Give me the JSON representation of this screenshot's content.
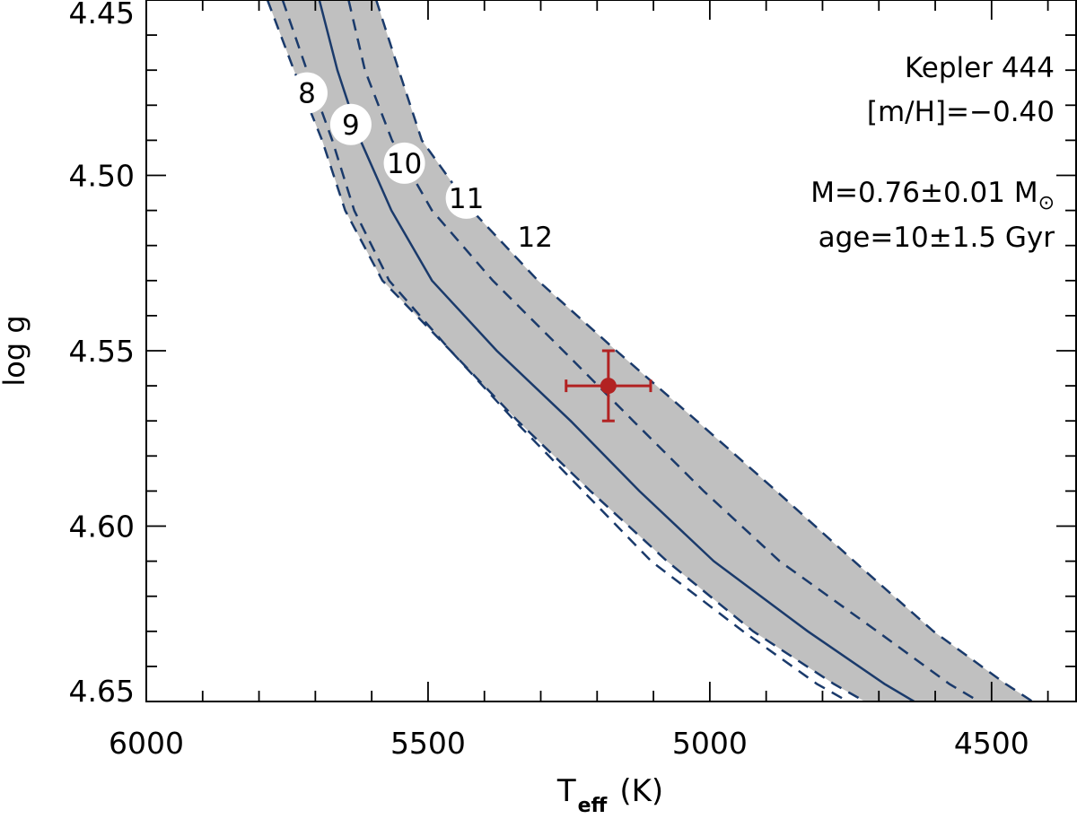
{
  "chart_data": {
    "type": "line",
    "xlabel": "T",
    "xlabel_sub": "eff",
    "xlabel_unit": "(K)",
    "ylabel": "log g",
    "xlim": [
      6000,
      4350
    ],
    "ylim": [
      4.45,
      4.65
    ],
    "x_ticks": [
      6000,
      5500,
      5000,
      4500
    ],
    "y_ticks": [
      4.45,
      4.5,
      4.55,
      4.6,
      4.65
    ],
    "x_minor_step": 100,
    "y_minor_step": 0.01,
    "grid": false,
    "annotations": {
      "star": "Kepler 444",
      "metallicity": "[m/H]=−0.40",
      "mass_prefix": "M=0.76±0.01 M",
      "mass_symbol": "⊙",
      "age": "age=10±1.5 Gyr"
    },
    "age_markers": [
      {
        "label": "8",
        "x": 5715,
        "y": 4.4765
      },
      {
        "label": "9",
        "x": 5637,
        "y": 4.4855
      },
      {
        "label": "10",
        "x": 5542,
        "y": 4.4965
      },
      {
        "label": "11",
        "x": 5432,
        "y": 4.5065
      },
      {
        "label": "12",
        "x": 5310,
        "y": 4.5175
      }
    ],
    "series": [
      {
        "role": "central",
        "color": "#1a3a6b",
        "style": "solid",
        "points": [
          [
            5693,
            4.45
          ],
          [
            5661,
            4.47
          ],
          [
            5620,
            4.49
          ],
          [
            5565,
            4.51
          ],
          [
            5493,
            4.53
          ],
          [
            5378,
            4.55
          ],
          [
            5247,
            4.57
          ],
          [
            5125,
            4.59
          ],
          [
            4993,
            4.61
          ],
          [
            4826,
            4.63
          ],
          [
            4690,
            4.645
          ],
          [
            4585,
            4.655
          ],
          [
            4500,
            4.665
          ]
        ]
      },
      {
        "role": "inner_upper",
        "color": "#1a3a6b",
        "style": "dashed",
        "points": [
          [
            5641,
            4.45
          ],
          [
            5612,
            4.47
          ],
          [
            5564,
            4.49
          ],
          [
            5493,
            4.51
          ],
          [
            5385,
            4.53
          ],
          [
            5260,
            4.55
          ],
          [
            5136,
            4.57
          ],
          [
            5011,
            4.59
          ],
          [
            4876,
            4.61
          ],
          [
            4703,
            4.63
          ],
          [
            4575,
            4.645
          ],
          [
            4470,
            4.655
          ],
          [
            4380,
            4.665
          ]
        ]
      },
      {
        "role": "inner_lower",
        "color": "#1a3a6b",
        "style": "dashed",
        "points": [
          [
            5758,
            4.45
          ],
          [
            5715,
            4.47
          ],
          [
            5670,
            4.49
          ],
          [
            5631,
            4.51
          ],
          [
            5569,
            4.53
          ],
          [
            5460,
            4.55
          ],
          [
            5346,
            4.57
          ],
          [
            5225,
            4.59
          ],
          [
            5104,
            4.61
          ],
          [
            4941,
            4.63
          ],
          [
            4810,
            4.645
          ],
          [
            4700,
            4.655
          ],
          [
            4600,
            4.665
          ]
        ]
      },
      {
        "role": "outer_upper",
        "color": "#1a3a6b",
        "style": "dashed",
        "points": [
          [
            5592,
            4.45
          ],
          [
            5552,
            4.47
          ],
          [
            5511,
            4.49
          ],
          [
            5422,
            4.51
          ],
          [
            5305,
            4.53
          ],
          [
            5166,
            4.55
          ],
          [
            5023,
            4.57
          ],
          [
            4882,
            4.59
          ],
          [
            4744,
            4.61
          ],
          [
            4603,
            4.63
          ],
          [
            4475,
            4.645
          ],
          [
            4380,
            4.655
          ],
          [
            4300,
            4.665
          ]
        ]
      },
      {
        "role": "outer_lower",
        "color": "#1a3a6b",
        "style": "dashed",
        "points": [
          [
            5785,
            4.45
          ],
          [
            5738,
            4.47
          ],
          [
            5688,
            4.49
          ],
          [
            5647,
            4.51
          ],
          [
            5581,
            4.53
          ],
          [
            5460,
            4.55
          ],
          [
            5341,
            4.57
          ],
          [
            5212,
            4.59
          ],
          [
            5076,
            4.61
          ],
          [
            4923,
            4.63
          ],
          [
            4780,
            4.645
          ],
          [
            4670,
            4.655
          ],
          [
            4560,
            4.665
          ]
        ]
      }
    ],
    "band_color": "#c0c0c0",
    "data_point": {
      "x": 5180,
      "y": 4.56,
      "x_err": 75,
      "y_err": 0.01,
      "color": "#b22222"
    }
  }
}
